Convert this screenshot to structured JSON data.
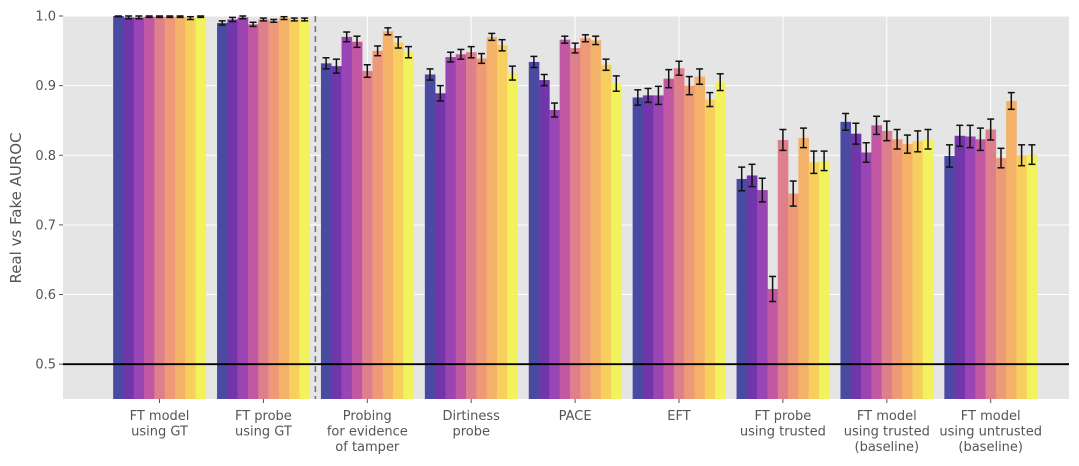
{
  "chart_data": {
    "type": "bar",
    "ylabel": "Real vs Fake AUROC",
    "ylim": [
      0.45,
      1.0
    ],
    "yticks": [
      0.5,
      0.6,
      0.7,
      0.8,
      0.9,
      1.0
    ],
    "ytick_labels": [
      "0.5",
      "0.6",
      "0.7",
      "0.8",
      "0.9",
      "1.0"
    ],
    "grid": true,
    "reference_line": 0.5,
    "separator_after_category": 1,
    "categories": [
      [
        "FT model",
        "using GT"
      ],
      [
        "FT probe",
        "using GT"
      ],
      [
        "Probing",
        "for evidence",
        "of tamper"
      ],
      [
        "Dirtiness",
        "probe"
      ],
      [
        "PACE"
      ],
      [
        "EFT"
      ],
      [
        "FT probe",
        "using trusted"
      ],
      [
        "FT model",
        "using trusted",
        "(baseline)"
      ],
      [
        "FT model",
        "using untrusted",
        "(baseline)"
      ]
    ],
    "series_colors": [
      "#4b4aa2",
      "#7136aa",
      "#9a45b3",
      "#c258a4",
      "#de7f8c",
      "#ee9a79",
      "#f3b267",
      "#f6cf5f",
      "#f2f25c"
    ],
    "values": [
      [
        1.0,
        0.998,
        0.998,
        0.999,
        0.999,
        0.999,
        0.999,
        0.997,
        0.999
      ],
      [
        0.99,
        0.995,
        0.998,
        0.988,
        0.995,
        0.993,
        0.997,
        0.995,
        0.995
      ],
      [
        0.932,
        0.928,
        0.97,
        0.963,
        0.921,
        0.95,
        0.978,
        0.962,
        0.948
      ],
      [
        0.916,
        0.889,
        0.941,
        0.945,
        0.948,
        0.939,
        0.97,
        0.958,
        0.918
      ],
      [
        0.934,
        0.908,
        0.865,
        0.966,
        0.954,
        0.968,
        0.965,
        0.93,
        0.903
      ],
      [
        0.883,
        0.886,
        0.886,
        0.91,
        0.925,
        0.9,
        0.913,
        0.88,
        0.905
      ],
      [
        0.766,
        0.771,
        0.75,
        0.608,
        0.822,
        0.745,
        0.825,
        0.79,
        0.792
      ],
      [
        0.848,
        0.831,
        0.804,
        0.843,
        0.835,
        0.823,
        0.816,
        0.82,
        0.823
      ],
      [
        0.799,
        0.828,
        0.827,
        0.823,
        0.837,
        0.796,
        0.878,
        0.8,
        0.801
      ]
    ],
    "errors": [
      [
        0.001,
        0.002,
        0.002,
        0.001,
        0.001,
        0.001,
        0.001,
        0.002,
        0.001
      ],
      [
        0.003,
        0.003,
        0.002,
        0.003,
        0.002,
        0.002,
        0.002,
        0.002,
        0.002
      ],
      [
        0.008,
        0.01,
        0.007,
        0.008,
        0.009,
        0.007,
        0.005,
        0.008,
        0.008
      ],
      [
        0.008,
        0.011,
        0.007,
        0.007,
        0.008,
        0.007,
        0.005,
        0.008,
        0.01
      ],
      [
        0.008,
        0.008,
        0.01,
        0.005,
        0.007,
        0.005,
        0.006,
        0.008,
        0.011
      ],
      [
        0.011,
        0.01,
        0.013,
        0.013,
        0.01,
        0.013,
        0.011,
        0.01,
        0.012
      ],
      [
        0.017,
        0.016,
        0.017,
        0.018,
        0.015,
        0.018,
        0.014,
        0.016,
        0.014
      ],
      [
        0.012,
        0.015,
        0.014,
        0.013,
        0.014,
        0.014,
        0.013,
        0.015,
        0.014
      ],
      [
        0.016,
        0.015,
        0.016,
        0.016,
        0.015,
        0.014,
        0.012,
        0.015,
        0.014
      ]
    ]
  }
}
